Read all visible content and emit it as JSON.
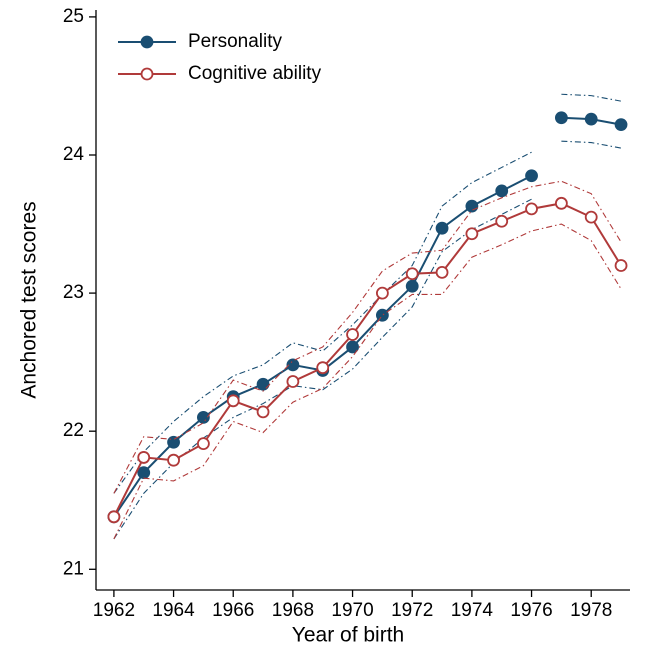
{
  "chart_data": {
    "type": "line",
    "x_label": "Year of birth",
    "y_label": "Anchored test scores",
    "x": [
      1962,
      1963,
      1964,
      1965,
      1966,
      1967,
      1968,
      1969,
      1970,
      1971,
      1972,
      1973,
      1974,
      1975,
      1976,
      1977,
      1978,
      1979
    ],
    "series": [
      {
        "name": "Personality",
        "color": "#1a4e72",
        "marker": "filled",
        "gap_before": 1977,
        "values": [
          21.38,
          21.7,
          21.92,
          22.1,
          22.25,
          22.34,
          22.48,
          22.44,
          22.61,
          22.84,
          23.05,
          23.47,
          23.63,
          23.74,
          23.85,
          24.27,
          24.26,
          24.22
        ],
        "ci_lower": [
          21.22,
          21.55,
          21.77,
          21.95,
          22.1,
          22.2,
          22.33,
          22.3,
          22.45,
          22.68,
          22.9,
          23.3,
          23.46,
          23.57,
          23.68,
          24.1,
          24.09,
          24.05
        ],
        "ci_upper": [
          21.55,
          21.85,
          22.07,
          22.25,
          22.4,
          22.48,
          22.64,
          22.58,
          22.77,
          22.99,
          23.2,
          23.63,
          23.8,
          23.91,
          24.02,
          24.44,
          24.43,
          24.39
        ]
      },
      {
        "name": "Cognitive ability",
        "color": "#b03a3a",
        "marker": "hollow",
        "values": [
          21.38,
          21.81,
          21.79,
          21.91,
          22.22,
          22.14,
          22.36,
          22.46,
          22.7,
          23.0,
          23.14,
          23.15,
          23.43,
          23.52,
          23.61,
          23.65,
          23.55,
          23.2
        ],
        "ci_lower": [
          21.22,
          21.66,
          21.64,
          21.75,
          22.07,
          21.99,
          22.21,
          22.31,
          22.54,
          22.84,
          22.99,
          22.99,
          23.26,
          23.35,
          23.45,
          23.5,
          23.38,
          23.03
        ],
        "ci_upper": [
          21.55,
          21.96,
          21.94,
          22.06,
          22.37,
          22.29,
          22.51,
          22.61,
          22.86,
          23.16,
          23.29,
          23.31,
          23.6,
          23.69,
          23.77,
          23.81,
          23.72,
          23.37
        ]
      }
    ],
    "xlim": [
      1961.4,
      1979.3
    ],
    "xticks": [
      1962,
      1964,
      1966,
      1968,
      1970,
      1972,
      1974,
      1976,
      1978
    ],
    "ylim": [
      20.85,
      25.05
    ],
    "yticks": [
      21,
      22,
      23,
      24,
      25
    ],
    "legend": "upper-left"
  }
}
